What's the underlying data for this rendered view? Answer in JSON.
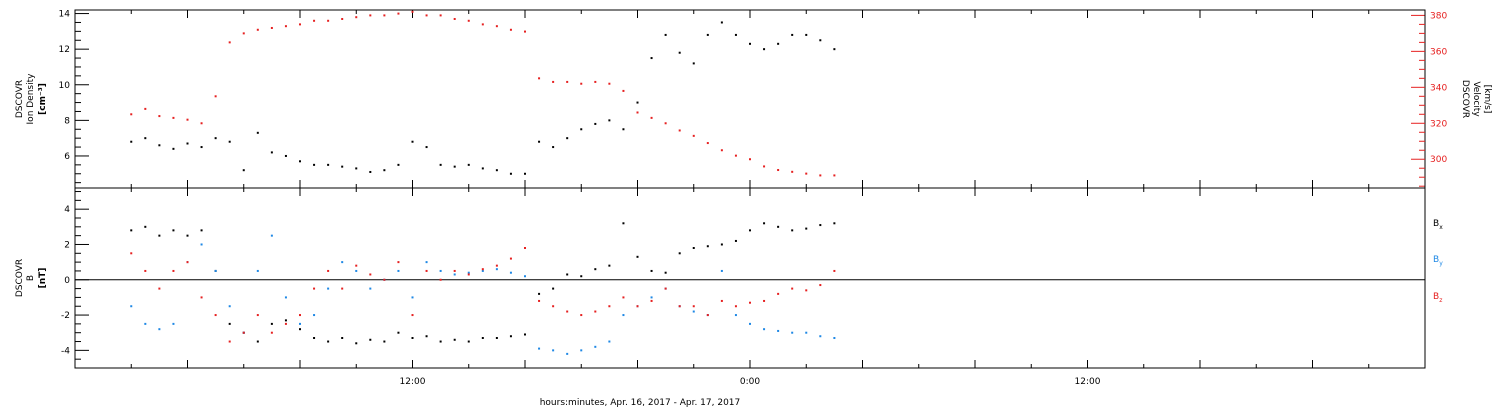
{
  "chart_data": [
    {
      "type": "scatter",
      "panel": "top",
      "ylabel_left": [
        "DSCOVR",
        "Ion Density",
        "[cm⁻³]"
      ],
      "ylabel_right": [
        "DSCOVR",
        "Velocity",
        "[km/s]"
      ],
      "yticks_left": [
        "6",
        "8",
        "10",
        "12",
        "14"
      ],
      "ylim_left": [
        4.2,
        14.2
      ],
      "yticks_right": [
        "300",
        "320",
        "340",
        "360",
        "380"
      ],
      "ylim_right": [
        284,
        383
      ],
      "series": [
        {
          "axis": "left",
          "color": "#000000",
          "values": [
            [
              2.0,
              6.8
            ],
            [
              2.5,
              7.0
            ],
            [
              3.0,
              6.6
            ],
            [
              3.5,
              6.4
            ],
            [
              4.0,
              6.7
            ],
            [
              4.5,
              6.5
            ],
            [
              5.0,
              7.0
            ],
            [
              5.5,
              6.8
            ],
            [
              6.0,
              5.2
            ],
            [
              6.5,
              7.3
            ],
            [
              7.0,
              6.2
            ],
            [
              7.5,
              6.0
            ],
            [
              8.0,
              5.7
            ],
            [
              8.5,
              5.5
            ],
            [
              9.0,
              5.5
            ],
            [
              9.5,
              5.4
            ],
            [
              10.0,
              5.3
            ],
            [
              10.5,
              5.1
            ],
            [
              11.0,
              5.2
            ],
            [
              11.5,
              5.5
            ],
            [
              12.0,
              6.8
            ],
            [
              12.5,
              6.5
            ],
            [
              13.0,
              5.5
            ],
            [
              13.5,
              5.4
            ],
            [
              14.0,
              5.5
            ],
            [
              14.5,
              5.3
            ],
            [
              15.0,
              5.2
            ],
            [
              15.5,
              5.0
            ],
            [
              16.0,
              5.0
            ],
            [
              16.5,
              6.8
            ],
            [
              17.0,
              6.5
            ],
            [
              17.5,
              7.0
            ],
            [
              18.0,
              7.5
            ],
            [
              18.5,
              7.8
            ],
            [
              19.0,
              8.0
            ],
            [
              19.5,
              7.5
            ],
            [
              20.0,
              9.0
            ],
            [
              20.5,
              11.5
            ],
            [
              21.0,
              12.8
            ],
            [
              21.5,
              11.8
            ],
            [
              22.0,
              11.2
            ],
            [
              22.5,
              12.8
            ],
            [
              23.0,
              13.5
            ],
            [
              23.5,
              12.8
            ],
            [
              24.0,
              12.3
            ],
            [
              24.5,
              12.0
            ],
            [
              25.0,
              12.3
            ],
            [
              25.5,
              12.8
            ],
            [
              26.0,
              12.8
            ],
            [
              26.5,
              12.5
            ],
            [
              27.0,
              12.0
            ]
          ]
        },
        {
          "axis": "right",
          "color": "#e62020",
          "values": [
            [
              2.0,
              325
            ],
            [
              2.5,
              328
            ],
            [
              3.0,
              324
            ],
            [
              3.5,
              323
            ],
            [
              4.0,
              322
            ],
            [
              4.5,
              320
            ],
            [
              5.0,
              335
            ],
            [
              5.5,
              365
            ],
            [
              6.0,
              370
            ],
            [
              6.5,
              372
            ],
            [
              7.0,
              373
            ],
            [
              7.5,
              374
            ],
            [
              8.0,
              375
            ],
            [
              8.5,
              377
            ],
            [
              9.0,
              377
            ],
            [
              9.5,
              378
            ],
            [
              10.0,
              379
            ],
            [
              10.5,
              380
            ],
            [
              11.0,
              380
            ],
            [
              11.5,
              381
            ],
            [
              12.0,
              382
            ],
            [
              12.5,
              380
            ],
            [
              13.0,
              380
            ],
            [
              13.5,
              378
            ],
            [
              14.0,
              377
            ],
            [
              14.5,
              375
            ],
            [
              15.0,
              374
            ],
            [
              15.5,
              372
            ],
            [
              16.0,
              371
            ],
            [
              16.5,
              345
            ],
            [
              17.0,
              343
            ],
            [
              17.5,
              343
            ],
            [
              18.0,
              342
            ],
            [
              18.5,
              343
            ],
            [
              19.0,
              342
            ],
            [
              19.5,
              338
            ],
            [
              20.0,
              326
            ],
            [
              20.5,
              323
            ],
            [
              21.0,
              320
            ],
            [
              21.5,
              316
            ],
            [
              22.0,
              313
            ],
            [
              22.5,
              309
            ],
            [
              23.0,
              305
            ],
            [
              23.5,
              302
            ],
            [
              24.0,
              300
            ],
            [
              24.5,
              296
            ],
            [
              25.0,
              294
            ],
            [
              25.5,
              293
            ],
            [
              26.0,
              292
            ],
            [
              26.5,
              291
            ],
            [
              27.0,
              291
            ]
          ]
        }
      ]
    },
    {
      "type": "scatter",
      "panel": "bottom",
      "ylabel_left": [
        "DSCOVR",
        "B",
        "[nT]"
      ],
      "yticks_left": [
        "4",
        "2",
        "0",
        "-2",
        "-4"
      ],
      "ylim_left": [
        -5.0,
        5.2
      ],
      "zero_line": true,
      "series": [
        {
          "name": "Bx",
          "color": "#000000",
          "values": [
            [
              2.0,
              2.8
            ],
            [
              2.5,
              3.0
            ],
            [
              3.0,
              2.5
            ],
            [
              3.5,
              2.8
            ],
            [
              4.0,
              2.5
            ],
            [
              4.5,
              2.8
            ],
            [
              5.0,
              0.5
            ],
            [
              5.5,
              -2.5
            ],
            [
              6.0,
              -3.0
            ],
            [
              6.5,
              -3.5
            ],
            [
              7.0,
              -2.5
            ],
            [
              7.5,
              -2.3
            ],
            [
              8.0,
              -2.8
            ],
            [
              8.5,
              -3.3
            ],
            [
              9.0,
              -3.5
            ],
            [
              9.5,
              -3.3
            ],
            [
              10.0,
              -3.6
            ],
            [
              10.5,
              -3.4
            ],
            [
              11.0,
              -3.5
            ],
            [
              11.5,
              -3.0
            ],
            [
              12.0,
              -3.3
            ],
            [
              12.5,
              -3.2
            ],
            [
              13.0,
              -3.5
            ],
            [
              13.5,
              -3.4
            ],
            [
              14.0,
              -3.5
            ],
            [
              14.5,
              -3.3
            ],
            [
              15.0,
              -3.3
            ],
            [
              15.5,
              -3.2
            ],
            [
              16.0,
              -3.1
            ],
            [
              16.5,
              -0.8
            ],
            [
              17.0,
              -0.5
            ],
            [
              17.5,
              0.3
            ],
            [
              18.0,
              0.2
            ],
            [
              18.5,
              0.6
            ],
            [
              19.0,
              0.8
            ],
            [
              19.5,
              3.2
            ],
            [
              20.0,
              1.3
            ],
            [
              20.5,
              0.5
            ],
            [
              21.0,
              0.4
            ],
            [
              21.5,
              1.5
            ],
            [
              22.0,
              1.8
            ],
            [
              22.5,
              1.9
            ],
            [
              23.0,
              2.0
            ],
            [
              23.5,
              2.2
            ],
            [
              24.0,
              2.8
            ],
            [
              24.5,
              3.2
            ],
            [
              25.0,
              3.0
            ],
            [
              25.5,
              2.8
            ],
            [
              26.0,
              2.9
            ],
            [
              26.5,
              3.1
            ],
            [
              27.0,
              3.2
            ]
          ]
        },
        {
          "name": "By",
          "color": "#1e88e5",
          "values": [
            [
              2.0,
              -1.5
            ],
            [
              2.5,
              -2.5
            ],
            [
              3.0,
              -2.8
            ],
            [
              3.5,
              -2.5
            ],
            [
              4.0,
              1.0
            ],
            [
              4.5,
              2.0
            ],
            [
              5.0,
              0.5
            ],
            [
              5.5,
              -1.5
            ],
            [
              6.0,
              -3.0
            ],
            [
              6.5,
              0.5
            ],
            [
              7.0,
              2.5
            ],
            [
              7.5,
              -1.0
            ],
            [
              8.0,
              -2.5
            ],
            [
              8.5,
              -2.0
            ],
            [
              9.0,
              -0.5
            ],
            [
              9.5,
              1.0
            ],
            [
              10.0,
              0.5
            ],
            [
              10.5,
              -0.5
            ],
            [
              11.0,
              0.0
            ],
            [
              11.5,
              0.5
            ],
            [
              12.0,
              -1.0
            ],
            [
              12.5,
              1.0
            ],
            [
              13.0,
              0.5
            ],
            [
              13.5,
              0.3
            ],
            [
              14.0,
              0.4
            ],
            [
              14.5,
              0.5
            ],
            [
              15.0,
              0.6
            ],
            [
              15.5,
              0.4
            ],
            [
              16.0,
              0.2
            ],
            [
              16.5,
              -3.9
            ],
            [
              17.0,
              -4.0
            ],
            [
              17.5,
              -4.2
            ],
            [
              18.0,
              -4.0
            ],
            [
              18.5,
              -3.8
            ],
            [
              19.0,
              -3.5
            ],
            [
              19.5,
              -2.0
            ],
            [
              20.0,
              -1.5
            ],
            [
              20.5,
              -1.0
            ],
            [
              21.0,
              -0.5
            ],
            [
              21.5,
              -1.5
            ],
            [
              22.0,
              -1.8
            ],
            [
              22.5,
              -2.0
            ],
            [
              23.0,
              0.5
            ],
            [
              23.5,
              -2.0
            ],
            [
              24.0,
              -2.5
            ],
            [
              24.5,
              -2.8
            ],
            [
              25.0,
              -2.9
            ],
            [
              25.5,
              -3.0
            ],
            [
              26.0,
              -3.0
            ],
            [
              26.5,
              -3.2
            ],
            [
              27.0,
              -3.3
            ]
          ]
        },
        {
          "name": "Bz",
          "color": "#e62020",
          "values": [
            [
              2.0,
              1.5
            ],
            [
              2.5,
              0.5
            ],
            [
              3.0,
              -0.5
            ],
            [
              3.5,
              0.5
            ],
            [
              4.0,
              1.0
            ],
            [
              4.5,
              -1.0
            ],
            [
              5.0,
              -2.0
            ],
            [
              5.5,
              -3.5
            ],
            [
              6.0,
              -3.0
            ],
            [
              6.5,
              -2.0
            ],
            [
              7.0,
              -3.0
            ],
            [
              7.5,
              -2.5
            ],
            [
              8.0,
              -2.0
            ],
            [
              8.5,
              -0.5
            ],
            [
              9.0,
              0.5
            ],
            [
              9.5,
              -0.5
            ],
            [
              10.0,
              0.8
            ],
            [
              10.5,
              0.3
            ],
            [
              11.0,
              0.0
            ],
            [
              11.5,
              1.0
            ],
            [
              12.0,
              -2.0
            ],
            [
              12.5,
              0.5
            ],
            [
              13.0,
              0.0
            ],
            [
              13.5,
              0.5
            ],
            [
              14.0,
              0.3
            ],
            [
              14.5,
              0.6
            ],
            [
              15.0,
              0.8
            ],
            [
              15.5,
              1.2
            ],
            [
              16.0,
              1.8
            ],
            [
              16.5,
              -1.2
            ],
            [
              17.0,
              -1.5
            ],
            [
              17.5,
              -1.8
            ],
            [
              18.0,
              -2.0
            ],
            [
              18.5,
              -1.8
            ],
            [
              19.0,
              -1.5
            ],
            [
              19.5,
              -1.0
            ],
            [
              20.0,
              -1.5
            ],
            [
              20.5,
              -1.2
            ],
            [
              21.0,
              -0.5
            ],
            [
              21.5,
              -1.5
            ],
            [
              22.0,
              -1.5
            ],
            [
              22.5,
              -2.0
            ],
            [
              23.0,
              -1.2
            ],
            [
              23.5,
              -1.5
            ],
            [
              24.0,
              -1.3
            ],
            [
              24.5,
              -1.2
            ],
            [
              25.0,
              -0.8
            ],
            [
              25.5,
              -0.5
            ],
            [
              26.0,
              -0.6
            ],
            [
              26.5,
              -0.3
            ],
            [
              27.0,
              0.5
            ]
          ]
        }
      ],
      "legend": [
        {
          "main": "B",
          "sub": "x",
          "color": "#000000"
        },
        {
          "main": "B",
          "sub": "y",
          "color": "#1e88e5"
        },
        {
          "main": "B",
          "sub": "z",
          "color": "#e62020"
        }
      ]
    }
  ],
  "x_axis": {
    "unit": "hours since Apr 16, 2017 00:00",
    "xlim": [
      0,
      48
    ],
    "tick_labels": [
      {
        "x": 12,
        "label": "12:00"
      },
      {
        "x": 24,
        "label": "0:00"
      },
      {
        "x": 36,
        "label": "12:00"
      }
    ],
    "minor_every_hours": 2,
    "major_every_hours": 4,
    "xlabel": "hours:minutes, Apr. 16, 2017 - Apr. 17, 2017"
  },
  "colors": {
    "axes": "#000000",
    "velocity": "#e62020",
    "by": "#1e88e5"
  }
}
